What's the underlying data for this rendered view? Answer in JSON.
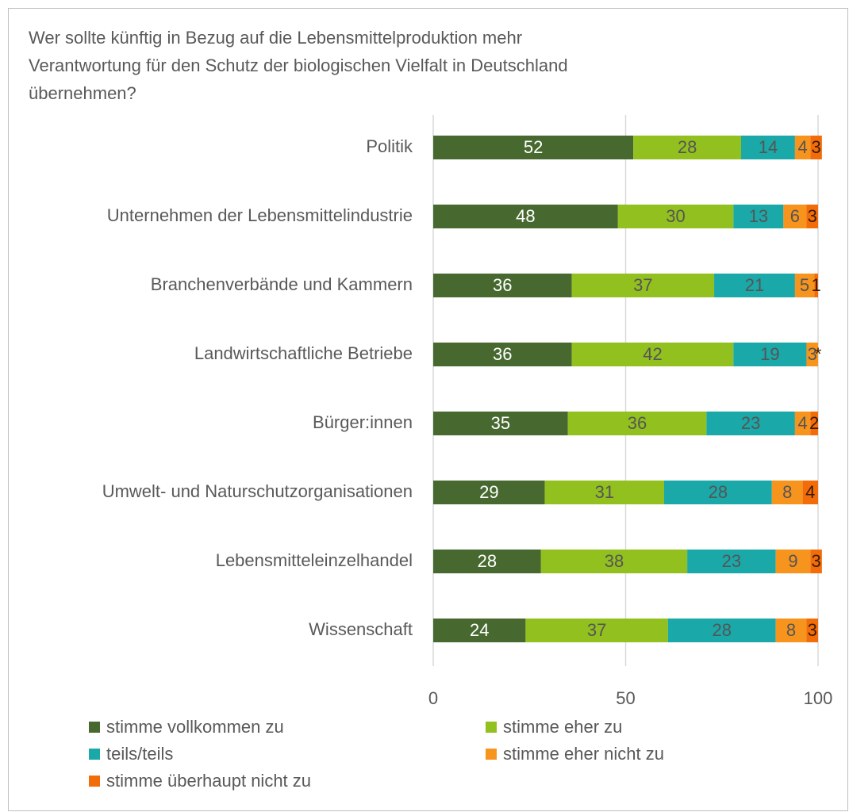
{
  "chart_data": {
    "type": "stacked-bar-horizontal",
    "title": "Wer sollte künftig in Bezug auf die Lebensmittelproduktion mehr\nVerantwortung für den Schutz der biologischen Vielfalt in Deutschland\nübernehmen?",
    "categories": [
      "Politik",
      "Unternehmen der Lebensmittelindustrie",
      "Branchenverbände und Kammern",
      "Landwirtschaftliche Betriebe",
      "Bürger:innen",
      "Umwelt- und Naturschutzorganisationen",
      "Lebensmitteleinzelhandel",
      "Wissenschaft"
    ],
    "series": [
      {
        "name": "stimme vollkommen zu",
        "color": "#476930",
        "values": [
          52,
          48,
          36,
          36,
          35,
          29,
          28,
          24
        ]
      },
      {
        "name": "stimme eher zu",
        "color": "#92c01f",
        "values": [
          28,
          30,
          37,
          42,
          36,
          31,
          38,
          37
        ]
      },
      {
        "name": "teils/teils",
        "color": "#1aa8a8",
        "values": [
          14,
          13,
          21,
          19,
          23,
          28,
          23,
          28
        ]
      },
      {
        "name": "stimme eher nicht zu",
        "color": "#f7941d",
        "values": [
          4,
          6,
          5,
          3,
          4,
          8,
          9,
          8
        ]
      },
      {
        "name": "stimme überhaupt nicht zu",
        "color": "#f26d0a",
        "values": [
          3,
          3,
          1,
          0,
          2,
          4,
          3,
          3
        ],
        "value_labels": [
          "3",
          "3",
          "1",
          "*",
          "2",
          "4",
          "3",
          "3"
        ]
      }
    ],
    "xlim": [
      0,
      100
    ],
    "xticks": [
      0,
      50,
      100
    ],
    "grid": true
  }
}
